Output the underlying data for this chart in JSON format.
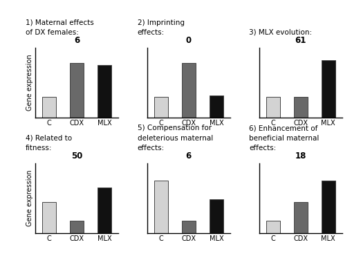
{
  "panels": [
    {
      "title_lines": [
        "1) Maternal effects",
        "of DX females:"
      ],
      "count": "6",
      "bars": [
        0.3,
        0.78,
        0.75
      ],
      "colors": [
        "#d3d3d3",
        "#696969",
        "#111111"
      ]
    },
    {
      "title_lines": [
        "2) Imprinting",
        "effects:"
      ],
      "count": "0",
      "bars": [
        0.3,
        0.78,
        0.32
      ],
      "colors": [
        "#d3d3d3",
        "#696969",
        "#111111"
      ]
    },
    {
      "title_lines": [
        "3) MLX evolution:"
      ],
      "count": "61",
      "bars": [
        0.3,
        0.3,
        0.82
      ],
      "colors": [
        "#d3d3d3",
        "#696969",
        "#111111"
      ]
    },
    {
      "title_lines": [
        "4) Related to",
        "fitness:"
      ],
      "count": "50",
      "bars": [
        0.45,
        0.18,
        0.65
      ],
      "colors": [
        "#d3d3d3",
        "#696969",
        "#111111"
      ]
    },
    {
      "title_lines": [
        "5) Compensation for",
        "deleterious maternal",
        "effects:"
      ],
      "count": "6",
      "bars": [
        0.75,
        0.18,
        0.48
      ],
      "colors": [
        "#d3d3d3",
        "#696969",
        "#111111"
      ]
    },
    {
      "title_lines": [
        "6) Enhancement of",
        "beneficial maternal",
        "effects:"
      ],
      "count": "18",
      "bars": [
        0.18,
        0.45,
        0.75
      ],
      "colors": [
        "#d3d3d3",
        "#696969",
        "#111111"
      ]
    }
  ],
  "xlabels": [
    "C",
    "CDX",
    "MLX"
  ],
  "ylabel": "Gene expression",
  "bar_width": 0.5,
  "background_color": "#ffffff",
  "title_fontsize": 7.5,
  "count_fontsize": 8.5,
  "tick_fontsize": 7,
  "ylabel_fontsize": 7
}
